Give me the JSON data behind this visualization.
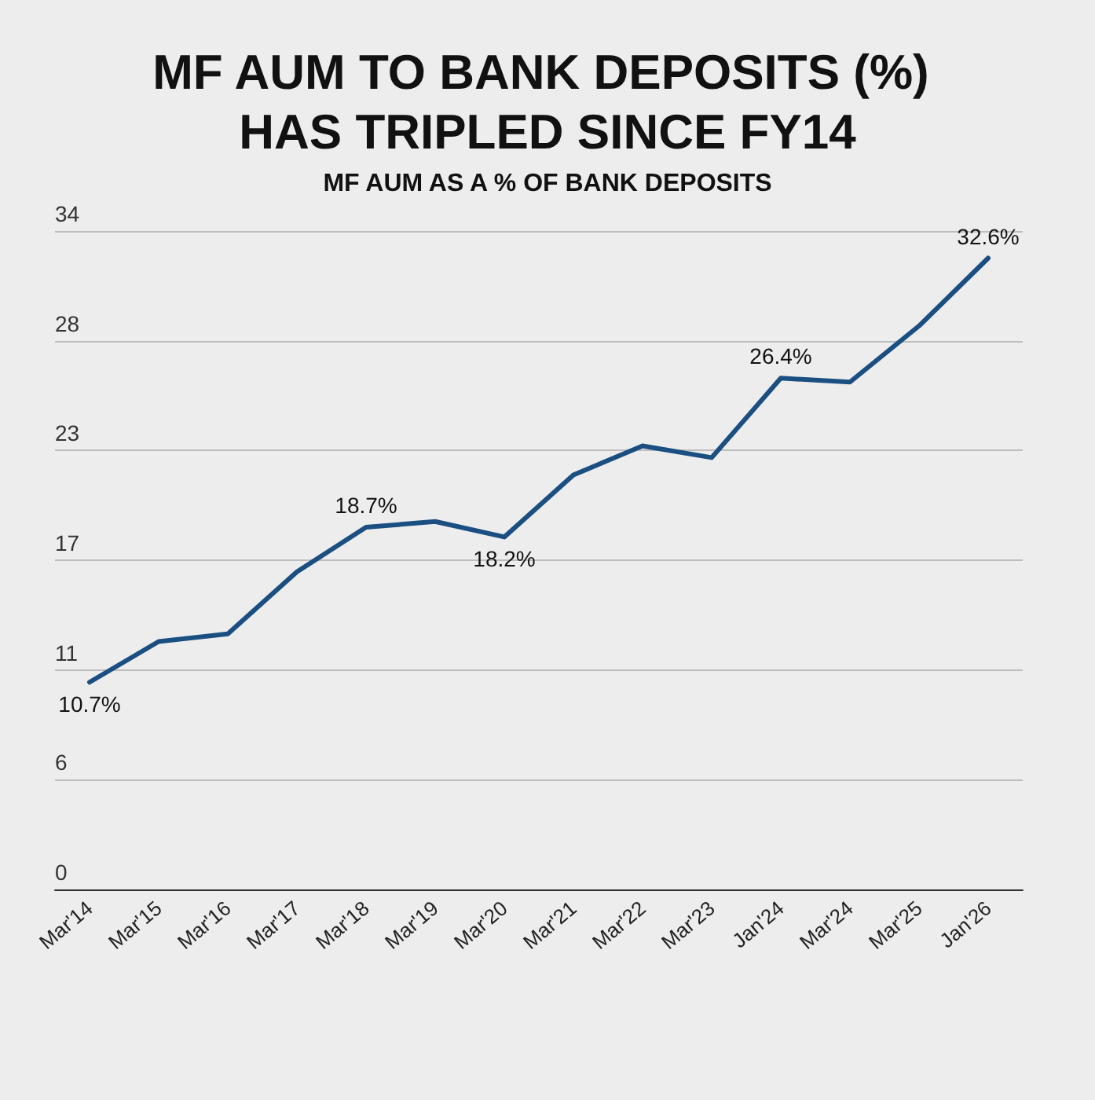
{
  "chart_data": {
    "type": "line",
    "title": "MF AUM TO BANK DEPOSITS (%) HAS TRIPLED SINCE FY14",
    "subtitle": "MF AUM AS A % OF BANK DEPOSITS",
    "categories": [
      "Mar'14",
      "Mar'15",
      "Mar'16",
      "Mar'17",
      "Mar'18",
      "Mar'19",
      "Mar'20",
      "Mar'21",
      "Mar'22",
      "Mar'23",
      "Jan'24",
      "Mar'24",
      "Mar'25",
      "Jan'26"
    ],
    "values": [
      10.7,
      12.8,
      13.2,
      16.4,
      18.7,
      19.0,
      18.2,
      21.4,
      22.9,
      22.3,
      26.4,
      26.2,
      29.1,
      32.6
    ],
    "value_labels": [
      "10.7%",
      null,
      null,
      null,
      "18.7%",
      null,
      "18.2%",
      null,
      null,
      null,
      "26.4%",
      null,
      null,
      "32.6%"
    ],
    "color": "#1b4f82",
    "ylim": [
      0,
      34
    ],
    "yticks": [
      0,
      {
        "value": 5.667,
        "label": "6"
      },
      {
        "value": 11.333,
        "label": "11"
      },
      17,
      {
        "value": 22.667,
        "label": "23"
      },
      {
        "value": 28.333,
        "label": "28"
      },
      34
    ],
    "grid": "y",
    "marker": "none",
    "line_style": "solid"
  }
}
